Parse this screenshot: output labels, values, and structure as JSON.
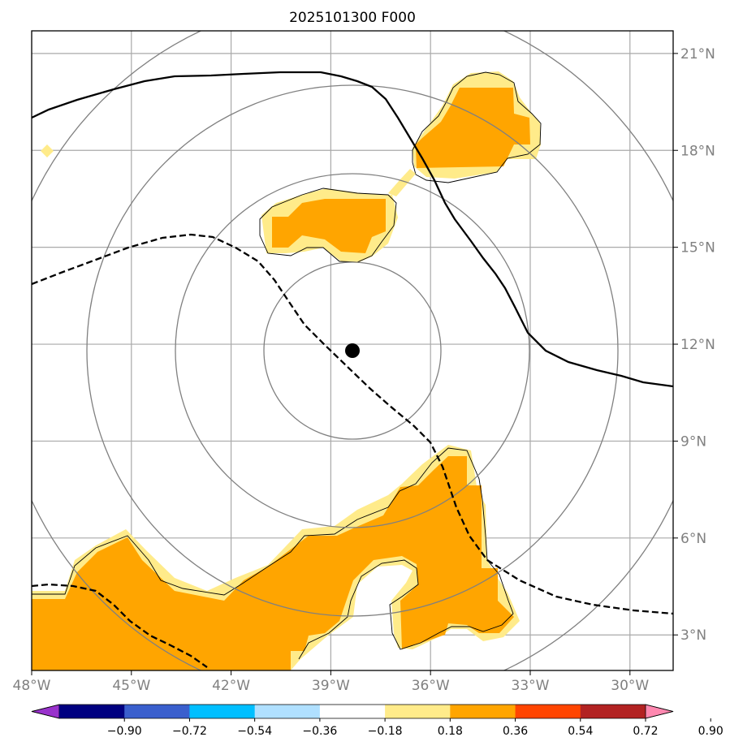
{
  "title": "2025101300 F000",
  "map": {
    "lon_range": [
      -48,
      -28.7
    ],
    "lat_range": [
      1.9,
      21.7
    ],
    "lon_ticks": [
      -48,
      -45,
      -42,
      -39,
      -36,
      -33,
      -30
    ],
    "lon_labels": [
      "48°W",
      "45°W",
      "42°W",
      "39°W",
      "36°W",
      "33°W",
      "30°W"
    ],
    "lat_ticks": [
      3,
      6,
      9,
      12,
      15,
      18,
      21
    ],
    "lat_labels": [
      "3°N",
      "6°N",
      "9°N",
      "12°N",
      "15°N",
      "18°N",
      "21°N"
    ],
    "center_marker": {
      "lon": -38.0,
      "lat": 11.8
    },
    "range_rings_deg": [
      2.7,
      5.4,
      8.1,
      10.8
    ],
    "colors": {
      "fill_light": "#ffeb8a",
      "fill_dark": "#ffa500",
      "grid": "#a9a9a9",
      "ring": "#808080"
    }
  },
  "colorbar": {
    "levels": [
      "−0.90",
      "−0.72",
      "−0.54",
      "−0.36",
      "−0.18",
      "0.18",
      "0.36",
      "0.54",
      "0.72",
      "0.90"
    ],
    "colors": [
      "#9932cc",
      "#000080",
      "#3a5fcd",
      "#00bfff",
      "#b0e0ff",
      "#ffffff",
      "#ffeb8a",
      "#ffa500",
      "#ff4500",
      "#b22222",
      "#ff88b0"
    ]
  }
}
